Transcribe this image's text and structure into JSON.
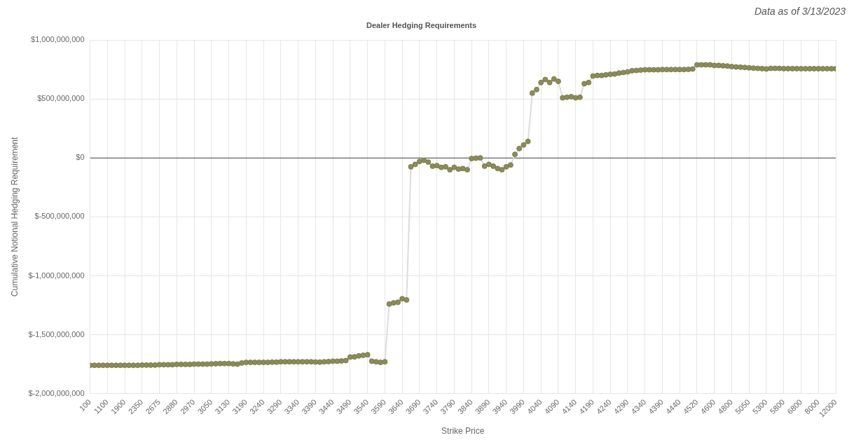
{
  "chart_data": {
    "type": "line",
    "title": "Dealer Hedging Requirements",
    "annotation": "Data as of 3/13/2023",
    "x_label": "Strike Price",
    "y_label": "Cumulative Notional Hedging Requirement",
    "color": "#8c8c5a",
    "marker": "circle",
    "grid": true,
    "categories": [
      "100",
      null,
      null,
      null,
      "1100",
      null,
      null,
      null,
      "1900",
      null,
      null,
      null,
      "2350",
      null,
      null,
      null,
      "2675",
      null,
      null,
      null,
      "2880",
      null,
      null,
      null,
      "2970",
      null,
      null,
      null,
      "3050",
      null,
      null,
      null,
      "3130",
      null,
      null,
      null,
      "3190",
      null,
      null,
      null,
      "3240",
      null,
      null,
      null,
      "3290",
      null,
      null,
      null,
      "3340",
      null,
      null,
      null,
      "3390",
      null,
      null,
      null,
      "3440",
      null,
      null,
      null,
      "3490",
      null,
      null,
      null,
      "3540",
      null,
      null,
      null,
      "3590",
      null,
      null,
      null,
      "3640",
      null,
      null,
      null,
      "3690",
      null,
      null,
      null,
      "3740",
      null,
      null,
      null,
      "3790",
      null,
      null,
      null,
      "3840",
      null,
      null,
      null,
      "3890",
      null,
      null,
      null,
      "3940",
      null,
      null,
      null,
      "3990",
      null,
      null,
      null,
      "4040",
      null,
      null,
      null,
      "4090",
      null,
      null,
      null,
      "4140",
      null,
      null,
      null,
      "4190",
      null,
      null,
      null,
      "4240",
      null,
      null,
      null,
      "4290",
      null,
      null,
      null,
      "4340",
      null,
      null,
      null,
      "4390",
      null,
      null,
      null,
      "4440",
      null,
      null,
      null,
      "4520",
      null,
      null,
      null,
      "4600",
      null,
      null,
      null,
      "4800",
      null,
      null,
      null,
      "5050",
      null,
      null,
      null,
      "5300",
      null,
      null,
      null,
      "5800",
      null,
      null,
      null,
      "6800",
      null,
      null,
      null,
      "8000",
      null,
      null,
      null,
      "12000"
    ],
    "values": [
      -1760000000,
      -1760000000,
      -1760000000,
      -1760000000,
      -1760000000,
      -1760000000,
      -1760000000,
      -1760000000,
      -1760000000,
      -1760000000,
      -1760000000,
      -1760000000,
      -1758000000,
      -1758000000,
      -1758000000,
      -1758000000,
      -1755000000,
      -1755000000,
      -1755000000,
      -1755000000,
      -1752000000,
      -1752000000,
      -1752000000,
      -1752000000,
      -1750000000,
      -1750000000,
      -1750000000,
      -1750000000,
      -1748000000,
      -1746000000,
      -1745000000,
      -1745000000,
      -1745000000,
      -1748000000,
      -1750000000,
      -1740000000,
      -1735000000,
      -1735000000,
      -1735000000,
      -1735000000,
      -1735000000,
      -1735000000,
      -1733000000,
      -1733000000,
      -1730000000,
      -1730000000,
      -1730000000,
      -1730000000,
      -1730000000,
      -1730000000,
      -1730000000,
      -1730000000,
      -1732000000,
      -1733000000,
      -1730000000,
      -1728000000,
      -1725000000,
      -1725000000,
      -1723000000,
      -1720000000,
      -1690000000,
      -1688000000,
      -1680000000,
      -1675000000,
      -1670000000,
      -1725000000,
      -1730000000,
      -1735000000,
      -1730000000,
      -1240000000,
      -1230000000,
      -1225000000,
      -1195000000,
      -1205000000,
      -75000000,
      -55000000,
      -30000000,
      -20000000,
      -35000000,
      -70000000,
      -65000000,
      -80000000,
      -75000000,
      -100000000,
      -80000000,
      -95000000,
      -90000000,
      -100000000,
      -5000000,
      -2000000,
      0,
      -70000000,
      -55000000,
      -70000000,
      -90000000,
      -100000000,
      -75000000,
      -60000000,
      30000000,
      80000000,
      110000000,
      140000000,
      550000000,
      580000000,
      640000000,
      665000000,
      640000000,
      670000000,
      650000000,
      510000000,
      515000000,
      520000000,
      510000000,
      515000000,
      630000000,
      640000000,
      695000000,
      700000000,
      700000000,
      705000000,
      710000000,
      712000000,
      720000000,
      725000000,
      730000000,
      740000000,
      742000000,
      745000000,
      748000000,
      748000000,
      748000000,
      748000000,
      750000000,
      750000000,
      750000000,
      750000000,
      750000000,
      750000000,
      752000000,
      755000000,
      790000000,
      790000000,
      790000000,
      790000000,
      785000000,
      785000000,
      782000000,
      780000000,
      775000000,
      772000000,
      770000000,
      768000000,
      765000000,
      762000000,
      760000000,
      758000000,
      755000000,
      760000000,
      760000000,
      760000000,
      758000000,
      758000000,
      758000000,
      758000000,
      757000000,
      757000000,
      757000000,
      757000000,
      757000000,
      757000000,
      757000000,
      757000000,
      757000000
    ],
    "ylim": [
      -2000000000,
      1000000000
    ],
    "yticks": [
      {
        "value": -2000000000,
        "label": "$-2,000,000,000"
      },
      {
        "value": -1500000000,
        "label": "$-1,500,000,000"
      },
      {
        "value": -1000000000,
        "label": "$-1,000,000,000"
      },
      {
        "value": -500000000,
        "label": "$-500,000,000"
      },
      {
        "value": 0,
        "label": "$0"
      },
      {
        "value": 500000000,
        "label": "$500,000,000"
      },
      {
        "value": 1000000000,
        "label": "$1,000,000,000"
      }
    ]
  }
}
